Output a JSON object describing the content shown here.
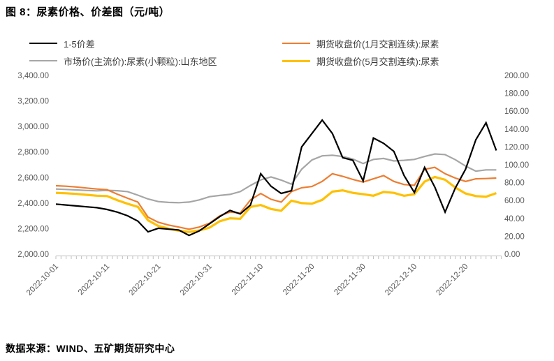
{
  "title": "图 8：尿素价格、价差图（元/吨）",
  "source": "数据来源：WIND、五矿期货研究中心",
  "colors": {
    "spread": "#000000",
    "jan_futures": "#ed7d31",
    "spot": "#a6a6a6",
    "may_futures": "#ffc000",
    "axis_text": "#595959",
    "axis_line": "#bfbfbf",
    "legend_text": "#3a3a3a"
  },
  "chart_data": {
    "type": "line",
    "grid": false,
    "legend_position": "top",
    "x": [
      "2022-10-01",
      "2022-10-03",
      "2022-10-05",
      "2022-10-07",
      "2022-10-09",
      "2022-10-11",
      "2022-10-13",
      "2022-10-15",
      "2022-10-17",
      "2022-10-19",
      "2022-10-21",
      "2022-10-23",
      "2022-10-25",
      "2022-10-27",
      "2022-10-29",
      "2022-10-31",
      "2022-11-02",
      "2022-11-04",
      "2022-11-06",
      "2022-11-08",
      "2022-11-10",
      "2022-11-12",
      "2022-11-14",
      "2022-11-16",
      "2022-11-18",
      "2022-11-20",
      "2022-11-22",
      "2022-11-24",
      "2022-11-26",
      "2022-11-28",
      "2022-11-30",
      "2022-12-02",
      "2022-12-04",
      "2022-12-06",
      "2022-12-08",
      "2022-12-10",
      "2022-12-12",
      "2022-12-14",
      "2022-12-16",
      "2022-12-18",
      "2022-12-20",
      "2022-12-22",
      "2022-12-24",
      "2022-12-26"
    ],
    "series": [
      {
        "id": "spread",
        "name": "1-5价差",
        "axis": "right",
        "color": "#000000",
        "stroke_width": 2.2,
        "values": [
          56,
          55,
          54,
          53,
          52,
          50,
          47,
          43,
          37,
          25,
          29,
          28,
          27,
          21,
          26,
          34,
          42,
          49,
          45,
          55,
          90,
          76,
          68,
          71,
          120,
          135,
          150,
          135,
          108,
          105,
          82,
          130,
          124,
          115,
          88,
          69,
          97,
          75,
          47,
          74,
          95,
          128,
          147,
          116
        ]
      },
      {
        "id": "jan_futures",
        "name": "期货收盘价(1月交割连续):尿素",
        "axis": "left",
        "color": "#ed7d31",
        "stroke_width": 2.2,
        "values": [
          2536,
          2532,
          2526,
          2518,
          2510,
          2505,
          2470,
          2438,
          2408,
          2290,
          2250,
          2228,
          2212,
          2195,
          2212,
          2242,
          2300,
          2330,
          2322,
          2425,
          2475,
          2430,
          2408,
          2490,
          2520,
          2530,
          2570,
          2630,
          2610,
          2585,
          2565,
          2590,
          2615,
          2570,
          2545,
          2540,
          2665,
          2680,
          2630,
          2596,
          2570,
          2590,
          2592,
          2596
        ]
      },
      {
        "id": "spot",
        "name": "市场价(主流价):尿素(小颗粒):山东地区",
        "axis": "left",
        "color": "#a6a6a6",
        "stroke_width": 2.2,
        "values": [
          2510,
          2507,
          2503,
          2499,
          2496,
          2500,
          2497,
          2490,
          2462,
          2432,
          2412,
          2405,
          2403,
          2408,
          2425,
          2450,
          2460,
          2468,
          2490,
          2538,
          2582,
          2605,
          2580,
          2548,
          2665,
          2738,
          2770,
          2775,
          2765,
          2745,
          2710,
          2742,
          2750,
          2730,
          2735,
          2742,
          2765,
          2785,
          2780,
          2740,
          2690,
          2650,
          2660,
          2660
        ]
      },
      {
        "id": "may_futures",
        "name": "期货收盘价(5月交割连续):尿素",
        "axis": "right-legend-row2",
        "color": "#ffc000",
        "stroke_width": 3.2,
        "values": [
          2480,
          2477,
          2472,
          2465,
          2458,
          2455,
          2423,
          2395,
          2371,
          2265,
          2221,
          2200,
          2184,
          2174,
          2186,
          2208,
          2258,
          2281,
          2277,
          2370,
          2385,
          2354,
          2340,
          2419,
          2400,
          2395,
          2425,
          2490,
          2500,
          2480,
          2470,
          2458,
          2487,
          2480,
          2457,
          2470,
          2568,
          2605,
          2583,
          2522,
          2475,
          2455,
          2450,
          2478
        ]
      }
    ],
    "left_axis": {
      "min": 2000,
      "max": 3400,
      "step": 200,
      "tick_labels": [
        "3,400.00",
        "3,200.00",
        "3,000.00",
        "2,800.00",
        "2,600.00",
        "2,400.00",
        "2,200.00",
        "2,000.00"
      ]
    },
    "right_axis": {
      "min": 0,
      "max": 200,
      "step": 20,
      "tick_labels": [
        "200.00",
        "180.00",
        "160.00",
        "140.00",
        "120.00",
        "100.00",
        "80.00",
        "60.00",
        "40.00",
        "20.00",
        "0.00"
      ]
    },
    "x_tick_labels": [
      "2022-10-01",
      "2022-10-11",
      "2022-10-21",
      "2022-10-31",
      "2022-11-10",
      "2022-11-20",
      "2022-11-30",
      "2022-12-10",
      "2022-12-20"
    ]
  }
}
